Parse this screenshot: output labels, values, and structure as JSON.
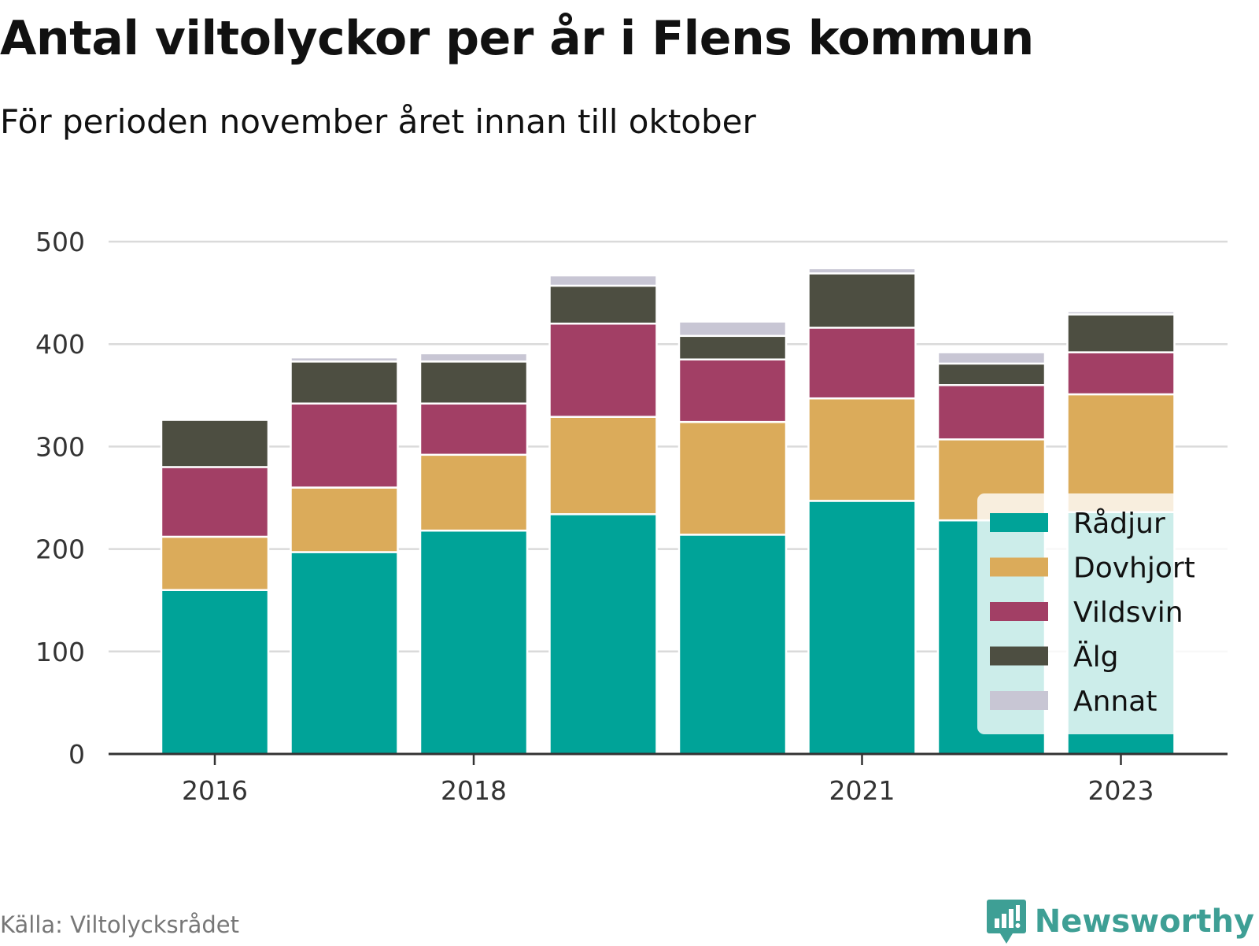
{
  "title": "Antal viltolyckor per år i Flens kommun",
  "subtitle": "För perioden november året innan till oktober",
  "source": "Källa: Viltolycksrådet",
  "brand": "Newsworthy",
  "chart_data": {
    "type": "bar",
    "stacked": true,
    "categories": [
      "2016",
      "2017",
      "2018",
      "2019",
      "2020",
      "2021",
      "2022",
      "2023"
    ],
    "x_tick_labels": [
      "2016",
      "2018",
      "2021",
      "2023"
    ],
    "y_ticks": [
      0,
      100,
      200,
      300,
      400,
      500
    ],
    "ylim": [
      0,
      500
    ],
    "grid": true,
    "legend_position": "bottom-right",
    "series": [
      {
        "name": "Rådjur",
        "color": "#00a398",
        "values": [
          160,
          197,
          218,
          234,
          214,
          247,
          228,
          236
        ]
      },
      {
        "name": "Dovhjort",
        "color": "#dbab5a",
        "values": [
          52,
          63,
          74,
          95,
          110,
          100,
          79,
          115
        ]
      },
      {
        "name": "Vildsvin",
        "color": "#a23f65",
        "values": [
          68,
          82,
          50,
          91,
          61,
          69,
          53,
          41
        ]
      },
      {
        "name": "Älg",
        "color": "#4d4e41",
        "values": [
          46,
          41,
          41,
          37,
          23,
          53,
          21,
          37
        ]
      },
      {
        "name": "Annat",
        "color": "#c8c6d4",
        "values": [
          0,
          4,
          8,
          10,
          14,
          5,
          11,
          3
        ]
      }
    ]
  }
}
